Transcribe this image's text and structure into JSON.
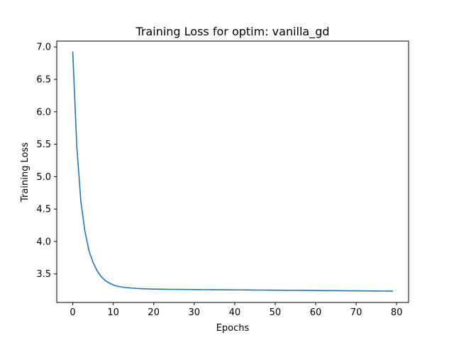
{
  "chart_data": {
    "type": "line",
    "title": "Training Loss for optim: vanilla_gd",
    "xlabel": "Epochs",
    "ylabel": "Training Loss",
    "xlim": [
      -3.95,
      82.95
    ],
    "ylim": [
      3.06,
      7.09
    ],
    "xticks": [
      0,
      10,
      20,
      30,
      40,
      50,
      60,
      70,
      80
    ],
    "xtick_labels": [
      "0",
      "10",
      "20",
      "30",
      "40",
      "50",
      "60",
      "70",
      "80"
    ],
    "yticks": [
      3.5,
      4.0,
      4.5,
      5.0,
      5.5,
      6.0,
      6.5,
      7.0
    ],
    "ytick_labels": [
      "3.5",
      "4.0",
      "4.5",
      "5.0",
      "5.5",
      "6.0",
      "6.5",
      "7.0"
    ],
    "grid": false,
    "series": [
      {
        "color": "#1f77b4",
        "x": [
          0,
          1,
          2,
          3,
          4,
          5,
          6,
          7,
          8,
          9,
          10,
          11,
          12,
          13,
          14,
          15,
          16,
          17,
          18,
          19,
          20,
          21,
          22,
          23,
          24,
          25,
          26,
          27,
          28,
          29,
          30,
          31,
          32,
          33,
          34,
          35,
          36,
          37,
          38,
          39,
          40,
          41,
          42,
          43,
          44,
          45,
          46,
          47,
          48,
          49,
          50,
          51,
          52,
          53,
          54,
          55,
          56,
          57,
          58,
          59,
          60,
          61,
          62,
          63,
          64,
          65,
          66,
          67,
          68,
          69,
          70,
          71,
          72,
          73,
          74,
          75,
          76,
          77,
          78,
          79
        ],
        "y": [
          6.92,
          5.47,
          4.62,
          4.16,
          3.86,
          3.68,
          3.55,
          3.46,
          3.4,
          3.36,
          3.33,
          3.31,
          3.3,
          3.29,
          3.285,
          3.28,
          3.275,
          3.272,
          3.27,
          3.268,
          3.266,
          3.265,
          3.264,
          3.263,
          3.262,
          3.262,
          3.261,
          3.261,
          3.26,
          3.26,
          3.259,
          3.259,
          3.258,
          3.258,
          3.257,
          3.257,
          3.256,
          3.256,
          3.255,
          3.255,
          3.254,
          3.254,
          3.253,
          3.253,
          3.252,
          3.252,
          3.251,
          3.251,
          3.25,
          3.25,
          3.249,
          3.249,
          3.248,
          3.248,
          3.247,
          3.247,
          3.246,
          3.246,
          3.245,
          3.245,
          3.244,
          3.244,
          3.243,
          3.243,
          3.242,
          3.242,
          3.241,
          3.241,
          3.24,
          3.24,
          3.239,
          3.239,
          3.238,
          3.238,
          3.237,
          3.237,
          3.236,
          3.236,
          3.235,
          3.235
        ]
      }
    ]
  }
}
